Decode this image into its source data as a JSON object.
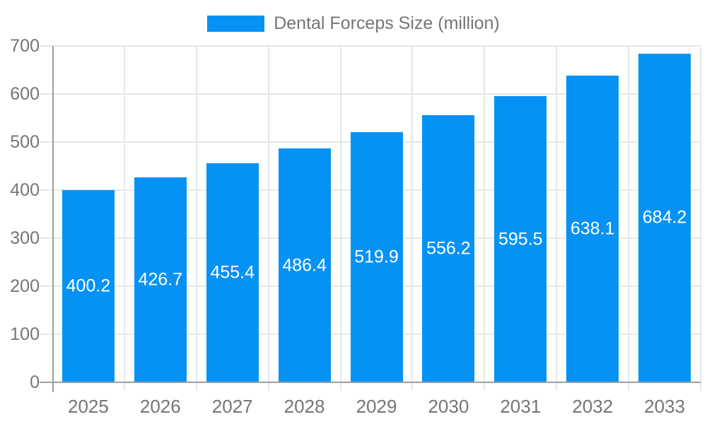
{
  "legend": {
    "label": "Dental Forceps Size (million)",
    "position": "top-center"
  },
  "colors": {
    "accent": "#0692f4",
    "grid": "#e7e7e7",
    "axis_line": "#9e9e9e",
    "tick_text": "#757575",
    "value_label_text": "#ffffff",
    "background": "#ffffff"
  },
  "chart_data": {
    "type": "bar",
    "title": "Dental Forceps Size (million)",
    "series_name": "Dental Forceps Size (million)",
    "categories": [
      "2025",
      "2026",
      "2027",
      "2028",
      "2029",
      "2030",
      "2031",
      "2032",
      "2033"
    ],
    "values": [
      400.2,
      426.7,
      455.4,
      486.4,
      519.9,
      556.2,
      595.5,
      638.1,
      684.2
    ],
    "value_labels": [
      "400.2",
      "426.7",
      "455.4",
      "486.4",
      "519.9",
      "556.2",
      "595.5",
      "638.1",
      "684.2"
    ],
    "value_label_placement": "inside-middle",
    "xlabel": "",
    "ylabel": "",
    "ylim": [
      0,
      700
    ],
    "yticks": [
      0,
      100,
      200,
      300,
      400,
      500,
      600,
      700
    ],
    "grid": true,
    "legend_position": "top",
    "bar_color": "#0692f4"
  }
}
